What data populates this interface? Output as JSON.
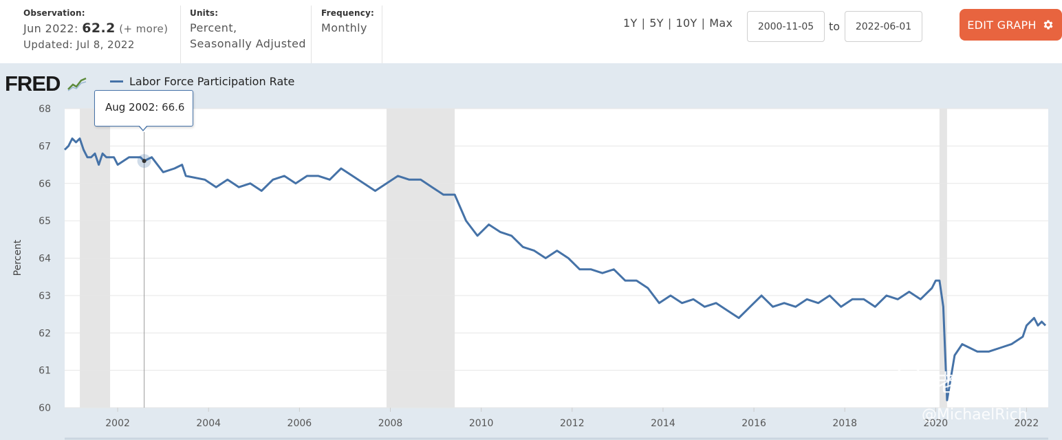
{
  "header": {
    "observation": {
      "label": "Observation:",
      "date": "Jun 2022:",
      "value": "62.2",
      "more": "(+ more)",
      "updated": "Updated: Jul 8, 2022"
    },
    "units": {
      "label": "Units:",
      "line1": "Percent,",
      "line2": "Seasonally Adjusted"
    },
    "frequency": {
      "label": "Frequency:",
      "value": "Monthly"
    },
    "range_links": [
      "1Y",
      "5Y",
      "10Y",
      "Max"
    ],
    "separator": "|",
    "start_date": "2000-11-05",
    "to_label": "to",
    "end_date": "2022-06-01",
    "edit_button": "EDIT GRAPH",
    "colors": {
      "accent": "#e8643f"
    }
  },
  "logo": {
    "text": "FRED"
  },
  "tooltip": {
    "date": "Aug 2002:",
    "value": "66.6"
  },
  "watermark": {
    "text": "老虎社区",
    "handle": "@MichaelRich"
  },
  "chart_data": {
    "type": "line",
    "xlabel": "",
    "ylabel": "Percent",
    "ylim": [
      60,
      68
    ],
    "yticks": [
      "60",
      "61",
      "62",
      "63",
      "64",
      "65",
      "66",
      "67",
      "68"
    ],
    "xticks": [
      "2002",
      "2004",
      "2006",
      "2008",
      "2010",
      "2012",
      "2014",
      "2016",
      "2018",
      "2020",
      "2022"
    ],
    "grid": true,
    "legend": "top-left",
    "line_color": "#4572a7",
    "recessions": [
      {
        "start": "2001-03",
        "end": "2001-11"
      },
      {
        "start": "2007-12",
        "end": "2009-06"
      },
      {
        "start": "2020-02",
        "end": "2020-04"
      }
    ],
    "series": [
      {
        "name": "Labor Force Participation Rate",
        "x": [
          "2000-11",
          "2000-12",
          "2001-01",
          "2001-02",
          "2001-03",
          "2001-04",
          "2001-05",
          "2001-06",
          "2001-07",
          "2001-08",
          "2001-09",
          "2001-10",
          "2001-11",
          "2001-12",
          "2002-01",
          "2002-04",
          "2002-07",
          "2002-08",
          "2002-10",
          "2003-01",
          "2003-04",
          "2003-06",
          "2003-07",
          "2003-12",
          "2004-03",
          "2004-06",
          "2004-09",
          "2004-12",
          "2005-03",
          "2005-06",
          "2005-09",
          "2005-12",
          "2006-03",
          "2006-06",
          "2006-09",
          "2006-12",
          "2007-03",
          "2007-06",
          "2007-09",
          "2007-12",
          "2008-03",
          "2008-06",
          "2008-09",
          "2008-12",
          "2009-03",
          "2009-06",
          "2009-09",
          "2009-12",
          "2010-03",
          "2010-06",
          "2010-09",
          "2010-12",
          "2011-03",
          "2011-06",
          "2011-09",
          "2011-12",
          "2012-03",
          "2012-06",
          "2012-09",
          "2012-12",
          "2013-03",
          "2013-06",
          "2013-09",
          "2013-12",
          "2014-03",
          "2014-06",
          "2014-09",
          "2014-12",
          "2015-03",
          "2015-06",
          "2015-09",
          "2015-12",
          "2016-03",
          "2016-06",
          "2016-09",
          "2016-12",
          "2017-03",
          "2017-06",
          "2017-09",
          "2017-12",
          "2018-03",
          "2018-06",
          "2018-09",
          "2018-12",
          "2019-03",
          "2019-06",
          "2019-09",
          "2019-12",
          "2020-01",
          "2020-02",
          "2020-03",
          "2020-04",
          "2020-05",
          "2020-06",
          "2020-08",
          "2020-10",
          "2020-12",
          "2021-03",
          "2021-06",
          "2021-09",
          "2021-12",
          "2022-01",
          "2022-03",
          "2022-04",
          "2022-05",
          "2022-06"
        ],
        "values": [
          66.9,
          67.0,
          67.2,
          67.1,
          67.2,
          66.9,
          66.7,
          66.7,
          66.8,
          66.5,
          66.8,
          66.7,
          66.7,
          66.7,
          66.5,
          66.7,
          66.7,
          66.6,
          66.7,
          66.3,
          66.4,
          66.5,
          66.2,
          66.1,
          65.9,
          66.1,
          65.9,
          66.0,
          65.8,
          66.1,
          66.2,
          66.0,
          66.2,
          66.2,
          66.1,
          66.4,
          66.2,
          66.0,
          65.8,
          66.0,
          66.2,
          66.1,
          66.1,
          65.9,
          65.7,
          65.7,
          65.0,
          64.6,
          64.9,
          64.7,
          64.6,
          64.3,
          64.2,
          64.0,
          64.2,
          64.0,
          63.7,
          63.7,
          63.6,
          63.7,
          63.4,
          63.4,
          63.2,
          62.8,
          63.0,
          62.8,
          62.9,
          62.7,
          62.8,
          62.6,
          62.4,
          62.7,
          63.0,
          62.7,
          62.8,
          62.7,
          62.9,
          62.8,
          63.0,
          62.7,
          62.9,
          62.9,
          62.7,
          63.0,
          62.9,
          63.1,
          62.9,
          63.2,
          63.4,
          63.4,
          62.7,
          60.2,
          60.8,
          61.4,
          61.7,
          61.6,
          61.5,
          61.5,
          61.6,
          61.7,
          61.9,
          62.2,
          62.4,
          62.2,
          62.3,
          62.2
        ]
      }
    ]
  }
}
